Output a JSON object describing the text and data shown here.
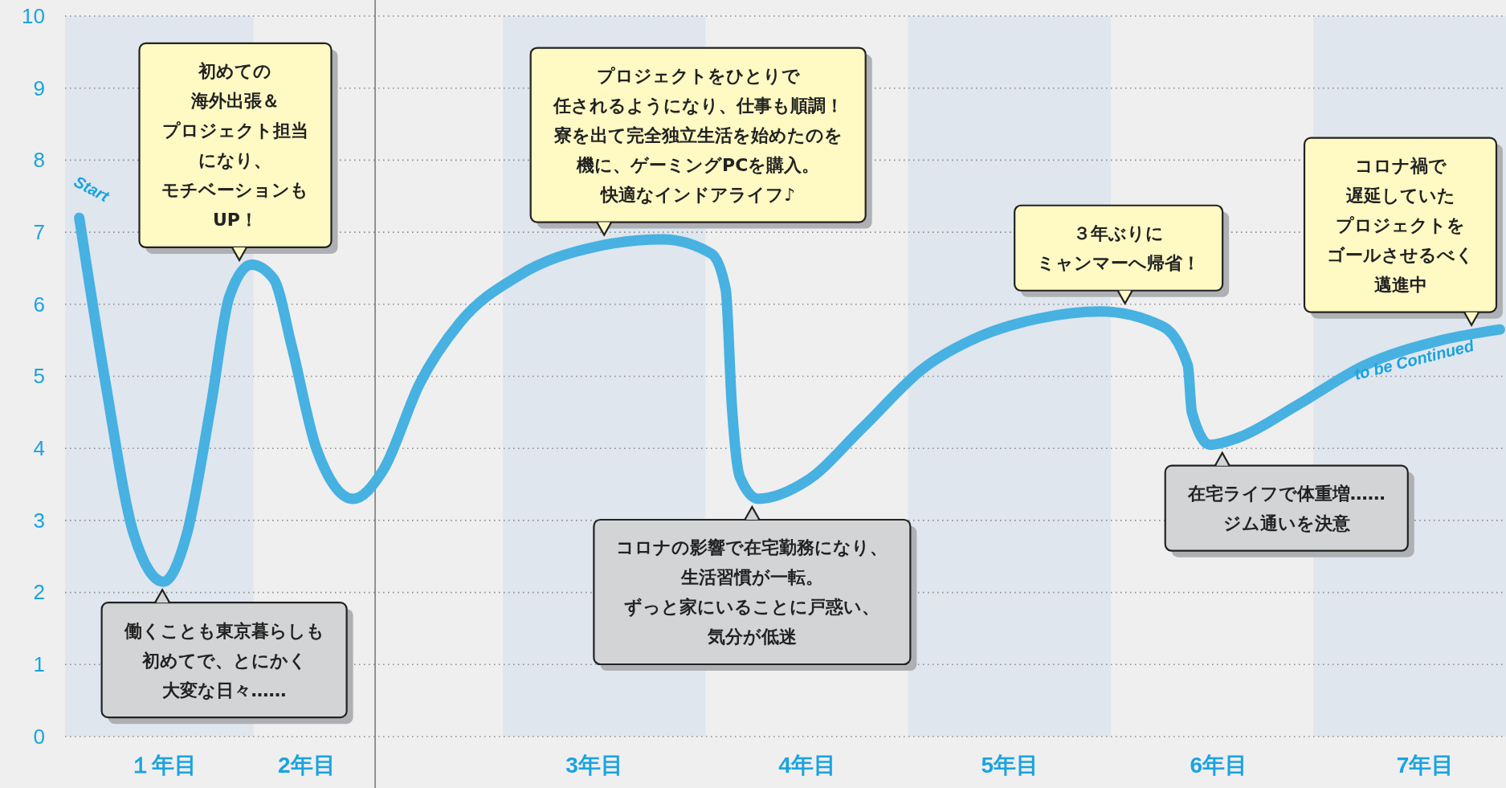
{
  "chart_data": {
    "type": "line",
    "x": [
      0.41,
      0.54,
      0.68,
      0.825,
      0.94,
      1.06,
      1.15,
      1.26,
      1.37,
      1.46,
      1.58,
      1.76,
      1.91,
      2.09,
      2.29,
      2.58,
      2.96,
      3.29,
      3.53,
      3.6,
      3.63,
      3.67,
      3.76,
      4.0,
      4.28,
      4.57,
      4.85,
      5.14,
      5.45,
      5.75,
      5.88,
      5.9,
      5.99,
      6.13,
      6.42,
      6.75,
      7.13,
      7.42
    ],
    "series": [
      {
        "color": "#47b1e1",
        "values": [
          7.2,
          4.9,
          2.8,
          2.15,
          2.8,
          4.6,
          6.1,
          6.55,
          6.35,
          5.4,
          4.0,
          3.3,
          3.7,
          4.9,
          5.75,
          6.4,
          6.8,
          6.9,
          6.7,
          6.2,
          4.6,
          3.6,
          3.3,
          3.55,
          4.3,
          5.1,
          5.55,
          5.8,
          5.9,
          5.7,
          5.15,
          4.5,
          4.05,
          4.15,
          4.6,
          5.15,
          5.5,
          5.65
        ]
      }
    ],
    "xlim": [
      0.34,
      7.45
    ],
    "xticks": [
      {
        "value": 0.82,
        "label": "１年目"
      },
      {
        "value": 1.53,
        "label": "2年目"
      },
      {
        "value": 2.95,
        "label": "3年目"
      },
      {
        "value": 4.0,
        "label": "4年目"
      },
      {
        "value": 5.0,
        "label": "5年目"
      },
      {
        "value": 6.03,
        "label": "6年目"
      },
      {
        "value": 7.05,
        "label": "7年目"
      }
    ],
    "ylim": [
      0,
      10
    ],
    "yticks": [
      0,
      1,
      2,
      3,
      4,
      5,
      6,
      7,
      8,
      9,
      10
    ],
    "grid": "y",
    "line_style": "solid",
    "bands": [
      {
        "axis": "x",
        "from": 0.34,
        "to": 1.27,
        "color": "#dfe6ee"
      },
      {
        "axis": "x",
        "from": 2.5,
        "to": 3.5,
        "color": "#dfe6ee"
      },
      {
        "axis": "x",
        "from": 4.5,
        "to": 5.5,
        "color": "#dfe6ee"
      },
      {
        "axis": "x",
        "from": 6.5,
        "to": 7.45,
        "color": "#dfe6ee"
      }
    ],
    "ref_lines": [
      {
        "axis": "x",
        "value": 1.87,
        "color": "#555555"
      }
    ],
    "annotations": [
      {
        "text": "働くことも東京暮らしも初めてで、とにかく大変な日々……",
        "x": 0.82,
        "y": 2.15
      },
      {
        "text": "初めての海外出張＆プロジェクト担当になり、モチベーションもUP！",
        "x": 1.2,
        "y": 6.5
      },
      {
        "text": "プロジェクトをひとりで任されるようになり、仕事も順調！寮を出て完全独立生活を始めたのを機に、ゲーミングPCを購入。快適なインドアライフ♪",
        "x": 3.0,
        "y": 6.85
      },
      {
        "text": "コロナの影響で在宅勤務になり、生活習慣が一転。ずっと家にいることに戸惑い、気分が低迷",
        "x": 3.73,
        "y": 3.3
      },
      {
        "text": "３年ぶりにミャンマーへ帰省！",
        "x": 5.57,
        "y": 5.9
      },
      {
        "text": "在宅ライフで体重増……ジム通いを決意",
        "x": 6.05,
        "y": 4.05
      },
      {
        "text": "コロナ禍で遅延していたプロジェクトをゴールさせるべく邁進中",
        "x": 7.28,
        "y": 5.6
      },
      {
        "text": "Start",
        "x": 0.41,
        "y": 7.2
      },
      {
        "text": "to be Continued",
        "x": 7.3,
        "y": 5.6
      }
    ]
  }
}
